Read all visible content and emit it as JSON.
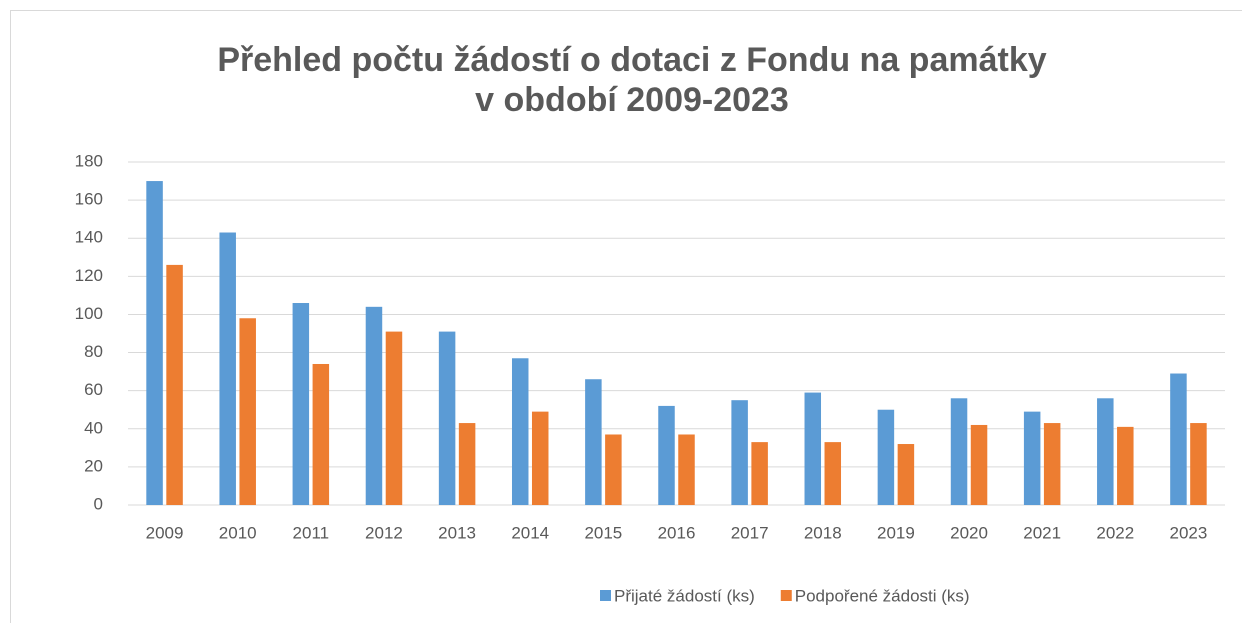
{
  "chart_data": {
    "type": "bar",
    "title": [
      "Přehled počtu žádostí o dotaci z Fondu na památky",
      "v období 2009-2023"
    ],
    "categories": [
      "2009",
      "2010",
      "2011",
      "2012",
      "2013",
      "2014",
      "2015",
      "2016",
      "2017",
      "2018",
      "2019",
      "2020",
      "2021",
      "2022",
      "2023"
    ],
    "series": [
      {
        "name": "Přijaté žádostí (ks)",
        "color": "#5b9bd5",
        "values": [
          170,
          143,
          106,
          104,
          91,
          77,
          66,
          52,
          55,
          59,
          50,
          56,
          49,
          56,
          69
        ]
      },
      {
        "name": "Podpořené žádosti (ks)",
        "color": "#ed7d31",
        "values": [
          126,
          98,
          74,
          91,
          43,
          49,
          37,
          37,
          33,
          33,
          32,
          42,
          43,
          41,
          43
        ]
      }
    ],
    "ylim": [
      0,
      180
    ],
    "yticks": [
      0,
      20,
      40,
      60,
      80,
      100,
      120,
      140,
      160,
      180
    ],
    "grid": true,
    "legend": "bottom"
  }
}
